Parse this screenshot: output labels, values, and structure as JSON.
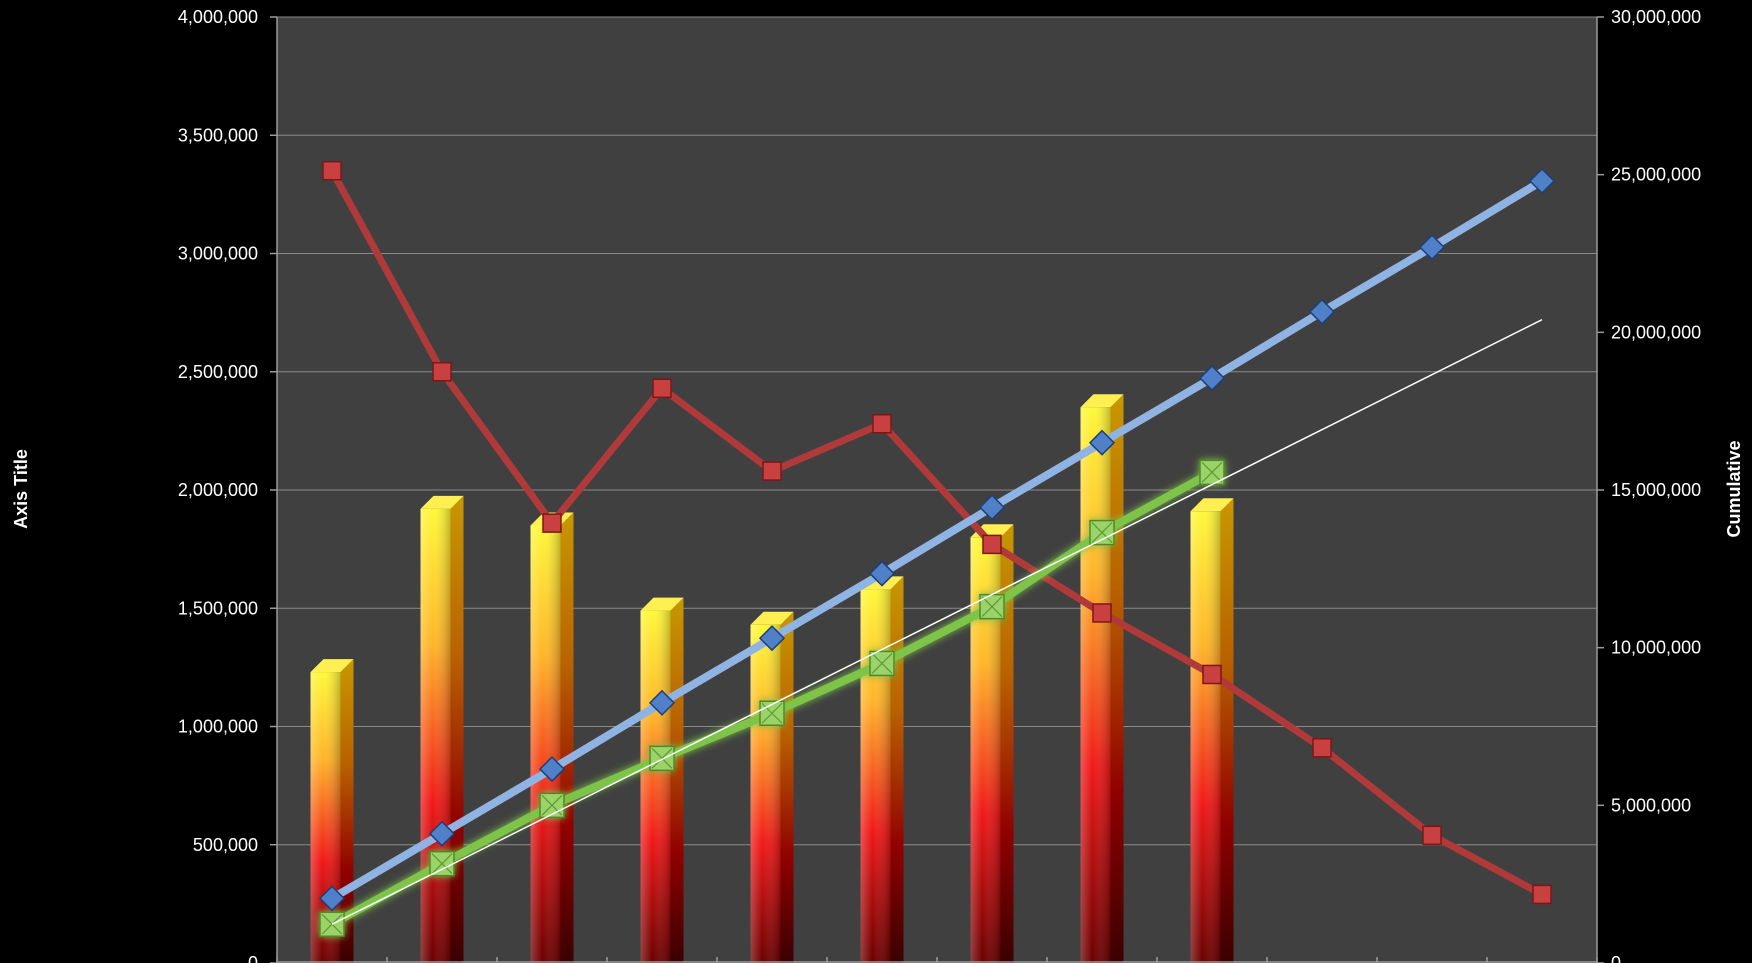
{
  "chart_data": {
    "type": "bar",
    "title": "",
    "xlabel": "",
    "ylabel": "Axis Title",
    "y2label": "Cumulative",
    "ylim": [
      0,
      4000000
    ],
    "y2lim": [
      0,
      30000000
    ],
    "y_ticks": [
      "0",
      "500,000",
      "1,000,000",
      "1,500,000",
      "2,000,000",
      "2,500,000",
      "3,000,000",
      "3,500,000",
      "4,000,000"
    ],
    "y2_ticks": [
      "0",
      "5,000,000",
      "10,000,000",
      "15,000,000",
      "20,000,000",
      "25,000,000",
      "30,000,000"
    ],
    "categories": [
      "",
      "",
      "",
      "",
      "",
      "",
      "",
      "",
      "",
      "",
      "",
      ""
    ],
    "grid": true,
    "series": [
      {
        "type": "bar",
        "axis": "primary",
        "values": [
          1230000,
          1920000,
          1850000,
          1490000,
          1430000,
          1580000,
          1800000,
          2350000,
          1910000,
          null,
          null,
          null
        ]
      },
      {
        "type": "line",
        "axis": "primary",
        "color": "#b0393a",
        "values": [
          3350000,
          2500000,
          1860000,
          2430000,
          2080000,
          2280000,
          1770000,
          1480000,
          1220000,
          910000,
          540000,
          290000
        ]
      },
      {
        "type": "line",
        "axis": "secondary",
        "color": "#8fb3e3",
        "values": [
          2050000,
          4100000,
          6150000,
          8250000,
          10300000,
          12350000,
          14450000,
          16500000,
          18550000,
          20650000,
          22700000,
          24800000
        ]
      },
      {
        "type": "line",
        "axis": "secondary",
        "color": "#7ec44a",
        "values": [
          1230000,
          3150000,
          5000000,
          6490000,
          7920000,
          9500000,
          11300000,
          13650000,
          15560000,
          null,
          null,
          null
        ]
      },
      {
        "type": "line",
        "axis": "secondary",
        "color": "#ffffff",
        "trendline": true,
        "values": [
          1230000,
          null,
          null,
          null,
          null,
          null,
          null,
          null,
          null,
          null,
          null,
          20400000
        ]
      }
    ]
  }
}
